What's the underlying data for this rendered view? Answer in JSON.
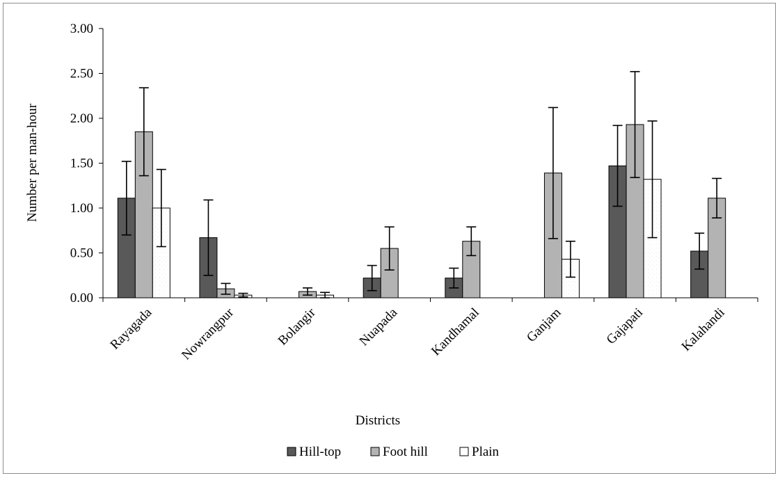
{
  "chart_data": {
    "type": "bar",
    "title": "",
    "xlabel": "Districts",
    "ylabel": "Number per man-hour",
    "ylim": [
      0,
      3
    ],
    "yticks": [
      "0.00",
      "0.50",
      "1.00",
      "1.50",
      "2.00",
      "2.50",
      "3.00"
    ],
    "categories": [
      "Rayagada",
      "Nowrangpur",
      "Bolangir",
      "Nuapada",
      "Kandhamal",
      "Ganjam",
      "Gajapati",
      "Kalahandi"
    ],
    "series": [
      {
        "name": "Hill-top",
        "color": "#595959",
        "values": [
          1.11,
          0.67,
          0,
          0.22,
          0.22,
          0,
          1.47,
          0.52
        ],
        "errors": [
          0.41,
          0.42,
          0,
          0.14,
          0.11,
          0,
          0.45,
          0.2
        ]
      },
      {
        "name": "Foot hill",
        "color": "#b3b3b3",
        "values": [
          1.85,
          0.1,
          0.07,
          0.55,
          0.63,
          1.39,
          1.93,
          1.11
        ],
        "errors": [
          0.49,
          0.06,
          0.04,
          0.24,
          0.16,
          0.73,
          0.59,
          0.22
        ]
      },
      {
        "name": "Plain",
        "color": "#ffffff",
        "values": [
          1.0,
          0.03,
          0.03,
          0,
          0,
          0.43,
          1.32,
          0
        ],
        "errors": [
          0.43,
          0.02,
          0.03,
          0,
          0,
          0.2,
          0.65,
          0
        ]
      }
    ],
    "grid": false,
    "legend": "bottom"
  }
}
